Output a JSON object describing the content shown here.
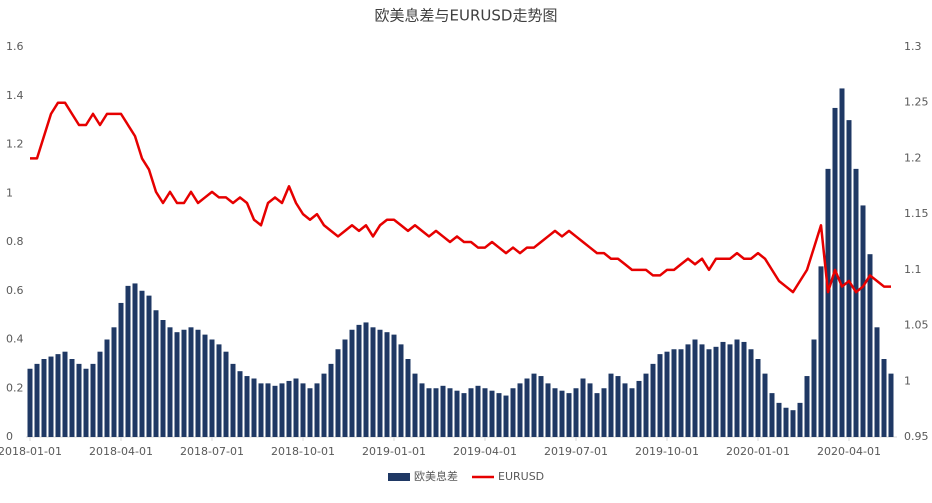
{
  "chart_data": {
    "type": "bar-line",
    "title": "欧美息差与EURUSD走势图",
    "categories": [
      "2018-01-01",
      null,
      null,
      null,
      null,
      null,
      null,
      null,
      null,
      null,
      null,
      null,
      null,
      "2018-04-01",
      null,
      null,
      null,
      null,
      null,
      null,
      null,
      null,
      null,
      null,
      null,
      null,
      "2018-07-01",
      null,
      null,
      null,
      null,
      null,
      null,
      null,
      null,
      null,
      null,
      null,
      null,
      "2018-10-01",
      null,
      null,
      null,
      null,
      null,
      null,
      null,
      null,
      null,
      null,
      null,
      null,
      "2019-01-01",
      null,
      null,
      null,
      null,
      null,
      null,
      null,
      null,
      null,
      null,
      null,
      null,
      "2019-04-01",
      null,
      null,
      null,
      null,
      null,
      null,
      null,
      null,
      null,
      null,
      null,
      null,
      "2019-07-01",
      null,
      null,
      null,
      null,
      null,
      null,
      null,
      null,
      null,
      null,
      null,
      null,
      "2019-10-01",
      null,
      null,
      null,
      null,
      null,
      null,
      null,
      null,
      null,
      null,
      null,
      null,
      "2020-01-01",
      null,
      null,
      null,
      null,
      null,
      null,
      null,
      null,
      null,
      null,
      null,
      null,
      "2020-04-01",
      null,
      null,
      null,
      null,
      null,
      null
    ],
    "series": [
      {
        "name": "欧美息差",
        "type": "bar",
        "color": "#1f3864",
        "values": [
          0.28,
          0.3,
          0.32,
          0.33,
          0.34,
          0.35,
          0.32,
          0.3,
          0.28,
          0.3,
          0.35,
          0.4,
          0.45,
          0.55,
          0.62,
          0.63,
          0.6,
          0.58,
          0.52,
          0.48,
          0.45,
          0.43,
          0.44,
          0.45,
          0.44,
          0.42,
          0.4,
          0.38,
          0.35,
          0.3,
          0.27,
          0.25,
          0.24,
          0.22,
          0.22,
          0.21,
          0.22,
          0.23,
          0.24,
          0.22,
          0.2,
          0.22,
          0.26,
          0.3,
          0.36,
          0.4,
          0.44,
          0.46,
          0.47,
          0.45,
          0.44,
          0.43,
          0.42,
          0.38,
          0.32,
          0.26,
          0.22,
          0.2,
          0.2,
          0.21,
          0.2,
          0.19,
          0.18,
          0.2,
          0.21,
          0.2,
          0.19,
          0.18,
          0.17,
          0.2,
          0.22,
          0.24,
          0.26,
          0.25,
          0.22,
          0.2,
          0.19,
          0.18,
          0.2,
          0.24,
          0.22,
          0.18,
          0.2,
          0.26,
          0.25,
          0.22,
          0.2,
          0.23,
          0.26,
          0.3,
          0.34,
          0.35,
          0.36,
          0.36,
          0.38,
          0.4,
          0.38,
          0.36,
          0.37,
          0.39,
          0.38,
          0.4,
          0.39,
          0.36,
          0.32,
          0.26,
          0.18,
          0.14,
          0.12,
          0.11,
          0.14,
          0.25,
          0.4,
          0.7,
          1.1,
          1.35,
          1.43,
          1.3,
          1.1,
          0.95,
          0.75,
          0.45,
          0.32,
          0.26
        ]
      },
      {
        "name": "EURUSD",
        "type": "line",
        "axis": "y2",
        "color": "#e60000",
        "values": [
          1.2,
          1.2,
          1.22,
          1.24,
          1.25,
          1.25,
          1.24,
          1.23,
          1.23,
          1.24,
          1.23,
          1.24,
          1.24,
          1.24,
          1.23,
          1.22,
          1.2,
          1.19,
          1.17,
          1.16,
          1.17,
          1.16,
          1.16,
          1.17,
          1.16,
          1.165,
          1.17,
          1.165,
          1.165,
          1.16,
          1.165,
          1.16,
          1.145,
          1.14,
          1.16,
          1.165,
          1.16,
          1.175,
          1.16,
          1.15,
          1.145,
          1.15,
          1.14,
          1.135,
          1.13,
          1.135,
          1.14,
          1.135,
          1.14,
          1.13,
          1.14,
          1.145,
          1.145,
          1.14,
          1.135,
          1.14,
          1.135,
          1.13,
          1.135,
          1.13,
          1.125,
          1.13,
          1.125,
          1.125,
          1.12,
          1.12,
          1.125,
          1.12,
          1.115,
          1.12,
          1.115,
          1.12,
          1.12,
          1.125,
          1.13,
          1.135,
          1.13,
          1.135,
          1.13,
          1.125,
          1.12,
          1.115,
          1.115,
          1.11,
          1.11,
          1.105,
          1.1,
          1.1,
          1.1,
          1.095,
          1.095,
          1.1,
          1.1,
          1.105,
          1.11,
          1.105,
          1.11,
          1.1,
          1.11,
          1.11,
          1.11,
          1.115,
          1.11,
          1.11,
          1.115,
          1.11,
          1.1,
          1.09,
          1.085,
          1.08,
          1.09,
          1.1,
          1.12,
          1.14,
          1.08,
          1.1,
          1.085,
          1.09,
          1.08,
          1.085,
          1.095,
          1.09,
          1.085,
          1.085
        ]
      }
    ],
    "ylim": [
      0,
      1.6
    ],
    "yticks": [
      0,
      0.2,
      0.4,
      0.6,
      0.8,
      1,
      1.2,
      1.4,
      1.6
    ],
    "y2lim": [
      0.95,
      1.3
    ],
    "y2ticks": [
      0.95,
      1,
      1.05,
      1.1,
      1.15,
      1.2,
      1.25,
      1.3
    ],
    "legend": "bottom"
  }
}
